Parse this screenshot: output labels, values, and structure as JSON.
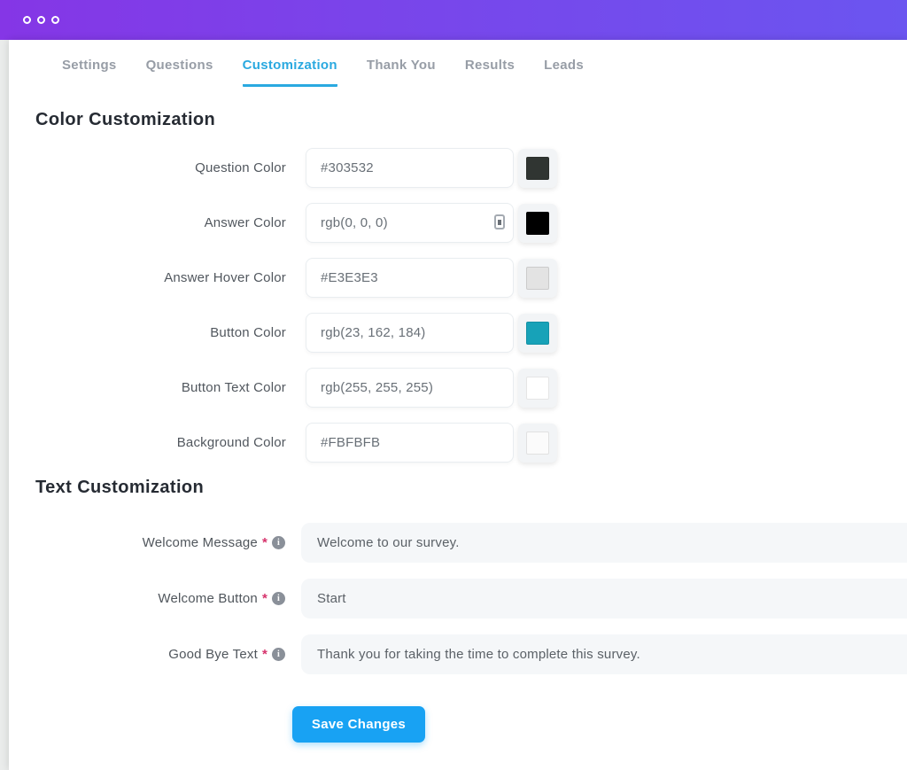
{
  "colors": {
    "header_gradient_left": "#8536E6",
    "header_gradient_right": "#6B55F0",
    "tab_active": "#2AA9E0",
    "save_button": "#18A2F3",
    "required_marker": "#D6336C"
  },
  "window": {
    "controls": [
      "circle",
      "circle",
      "circle"
    ]
  },
  "tabs": [
    {
      "label": "Settings",
      "active": false
    },
    {
      "label": "Questions",
      "active": false
    },
    {
      "label": "Customization",
      "active": true
    },
    {
      "label": "Thank You",
      "active": false
    },
    {
      "label": "Results",
      "active": false
    },
    {
      "label": "Leads",
      "active": false
    }
  ],
  "color_section": {
    "title": "Color Customization",
    "rows": [
      {
        "label": "Question Color",
        "value": "#303532",
        "swatch": "#303532"
      },
      {
        "label": "Answer Color",
        "value": "rgb(0, 0, 0)",
        "swatch": "#000000"
      },
      {
        "label": "Answer Hover Color",
        "value": "#E3E3E3",
        "swatch": "#E3E3E3"
      },
      {
        "label": "Button Color",
        "value": "rgb(23, 162, 184)",
        "swatch": "#17A2B8"
      },
      {
        "label": "Button Text Color",
        "value": "rgb(255, 255, 255)",
        "swatch": "#FFFFFF"
      },
      {
        "label": "Background Color",
        "value": "#FBFBFB",
        "swatch": "#FBFBFB"
      }
    ]
  },
  "text_section": {
    "title": "Text Customization",
    "required_marker": "*",
    "info_glyph": "i",
    "rows": [
      {
        "label": "Welcome Message",
        "value": "Welcome to our survey."
      },
      {
        "label": "Welcome Button",
        "value": "Start"
      },
      {
        "label": "Good Bye Text",
        "value": "Thank you for taking the time to complete this survey."
      }
    ]
  },
  "save_button": {
    "label": "Save Changes"
  }
}
